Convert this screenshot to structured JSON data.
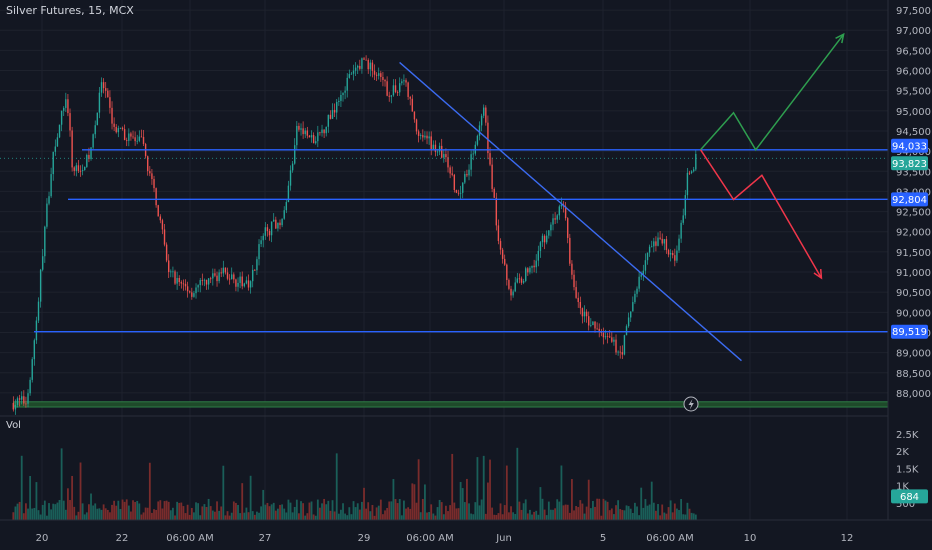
{
  "header": {
    "symbol_title": "Silver Futures, 15, MCX"
  },
  "colors": {
    "background": "#131722",
    "grid": "#1e222d",
    "up": "#26a69a",
    "down": "#ef5350",
    "vol_up": "#1a5f59",
    "vol_down": "#7a2c2c",
    "hline": "#2962ff",
    "trend": "#3b6bf0",
    "up_arrow": "#2e9e4f",
    "down_arrow": "#f0364a",
    "zone": "#1e4a2a",
    "axis_text": "#b2b5be",
    "last_price_bg": "#26a69a"
  },
  "icons": {
    "alert": "lightning-bolt-icon"
  },
  "chart_data": {
    "type": "candlestick",
    "title": "Silver Futures, 15, MCX",
    "price_axis": {
      "ticks": [
        "97,500",
        "97,000",
        "96,500",
        "96,000",
        "95,500",
        "95,000",
        "94,500",
        "94,000",
        "93,500",
        "93,000",
        "92,500",
        "92,000",
        "91,500",
        "91,000",
        "90,500",
        "90,000",
        "89,500",
        "89,000",
        "88,500",
        "88,000"
      ],
      "range": [
        87700,
        97750
      ]
    },
    "time_axis": {
      "ticks": [
        "20",
        "22",
        "06:00 AM",
        "27",
        "29",
        "06:00 AM",
        "Jun",
        "5",
        "06:00 AM",
        "10",
        "12"
      ]
    },
    "price_labels": [
      {
        "text": "94,033",
        "value": 94033,
        "kind": "level"
      },
      {
        "text": "93,823",
        "value": 93823,
        "kind": "last"
      },
      {
        "text": "92,804",
        "value": 92804,
        "kind": "level"
      },
      {
        "text": "89,519",
        "value": 89519,
        "kind": "level"
      }
    ],
    "horizontal_levels": [
      94033,
      92804,
      89519
    ],
    "trend_line": {
      "from": {
        "bar": 0.45,
        "price": 96200
      },
      "to": {
        "bar": 0.835,
        "price": 88800
      }
    },
    "up_path": [
      [
        0.789,
        94033
      ],
      [
        0.826,
        94950
      ],
      [
        0.851,
        94033
      ],
      [
        0.95,
        96900
      ]
    ],
    "down_path": [
      [
        0.789,
        94033
      ],
      [
        0.826,
        92800
      ],
      [
        0.858,
        93400
      ],
      [
        0.925,
        90850
      ]
    ],
    "support_zone": [
      87650,
      87780
    ],
    "key_prices": [
      [
        0.015,
        87750
      ],
      [
        0.03,
        87800
      ],
      [
        0.04,
        89500
      ],
      [
        0.05,
        92000
      ],
      [
        0.06,
        94000
      ],
      [
        0.075,
        95400
      ],
      [
        0.082,
        93500
      ],
      [
        0.1,
        93800
      ],
      [
        0.115,
        95700
      ],
      [
        0.13,
        94500
      ],
      [
        0.16,
        94200
      ],
      [
        0.175,
        92900
      ],
      [
        0.19,
        91000
      ],
      [
        0.215,
        90500
      ],
      [
        0.25,
        91000
      ],
      [
        0.28,
        90600
      ],
      [
        0.295,
        91900
      ],
      [
        0.32,
        92400
      ],
      [
        0.335,
        94600
      ],
      [
        0.355,
        94200
      ],
      [
        0.37,
        94800
      ],
      [
        0.39,
        95700
      ],
      [
        0.41,
        96300
      ],
      [
        0.44,
        95400
      ],
      [
        0.455,
        95800
      ],
      [
        0.47,
        94500
      ],
      [
        0.5,
        93900
      ],
      [
        0.515,
        92900
      ],
      [
        0.53,
        93800
      ],
      [
        0.545,
        95000
      ],
      [
        0.56,
        92000
      ],
      [
        0.575,
        90500
      ],
      [
        0.6,
        91200
      ],
      [
        0.62,
        92200
      ],
      [
        0.635,
        92700
      ],
      [
        0.645,
        90600
      ],
      [
        0.66,
        89800
      ],
      [
        0.685,
        89300
      ],
      [
        0.7,
        89000
      ],
      [
        0.715,
        90500
      ],
      [
        0.73,
        91500
      ],
      [
        0.745,
        91800
      ],
      [
        0.76,
        91400
      ],
      [
        0.77,
        92400
      ],
      [
        0.775,
        93500
      ],
      [
        0.785,
        93823
      ]
    ],
    "volume_axis": {
      "ticks": [
        "2.5K",
        "2K",
        "1.5K",
        "1K",
        "500"
      ],
      "range": [
        0,
        2900
      ],
      "label": "Vol",
      "last": "684"
    }
  }
}
